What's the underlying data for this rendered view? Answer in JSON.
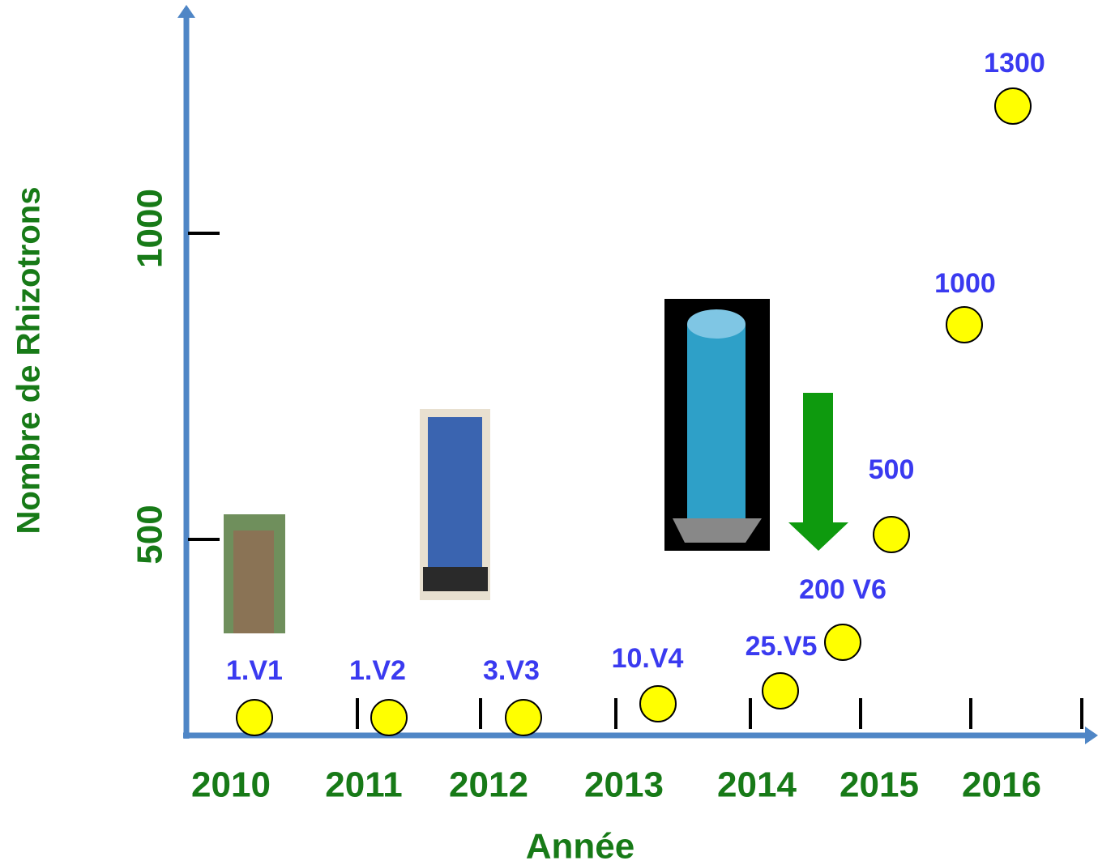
{
  "axes": {
    "y_title": "Nombre de Rhizotrons",
    "x_title": "Année",
    "y_labels": [
      "1000",
      "500"
    ],
    "x_labels": [
      "2010",
      "2011",
      "2012",
      "2013",
      "2014",
      "2015",
      "2016"
    ]
  },
  "points": [
    {
      "label": "1.V1"
    },
    {
      "label": "1.V2"
    },
    {
      "label": "3.V3"
    },
    {
      "label": "10.V4"
    },
    {
      "label": "25.V5"
    },
    {
      "label": "200 V6"
    },
    {
      "label": "500"
    },
    {
      "label": "1000"
    },
    {
      "label": "1300"
    }
  ]
}
